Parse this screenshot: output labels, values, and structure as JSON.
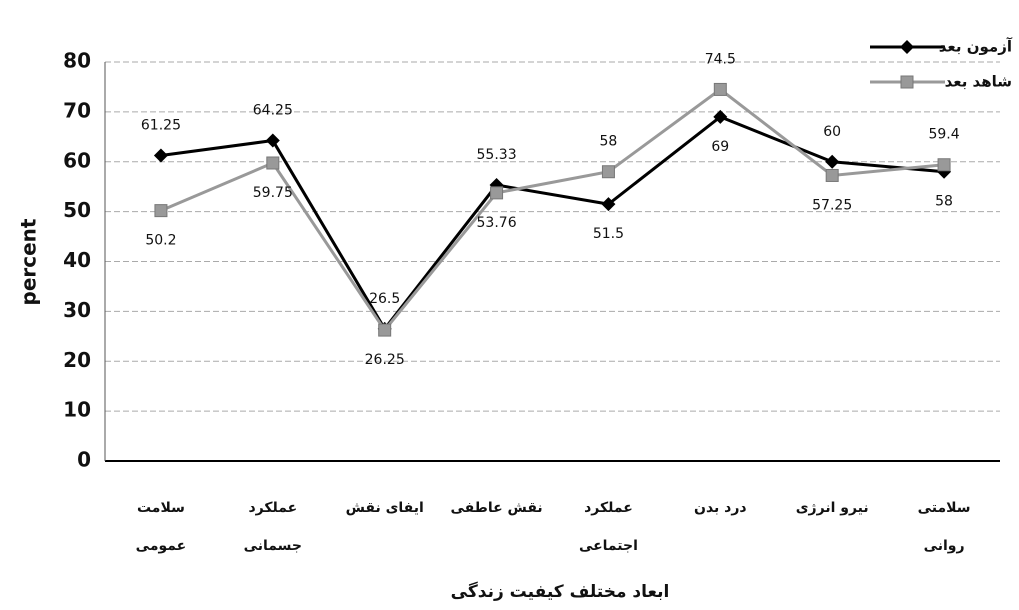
{
  "chart_data": {
    "type": "line",
    "x_label": "ابعاد مختلف کیفیت زندگی",
    "y_label": "percent",
    "categories": [
      "سلامت\nعمومی",
      "عملکرد\nجسمانی",
      "ایفای نقش",
      "نقش عاطفی",
      "عملکرد\nاجتماعی",
      "درد بدن",
      "نیرو انرژی",
      "سلامتی\nروانی"
    ],
    "series": [
      {
        "name": "آزمون بعد",
        "color": "#000000",
        "marker": "diamond",
        "values": [
          61.25,
          64.25,
          26.5,
          55.33,
          51.5,
          69,
          60,
          58
        ]
      },
      {
        "name": "شاهد بعد",
        "color": "#999999",
        "marker": "square",
        "values": [
          50.2,
          59.75,
          26.25,
          53.76,
          58,
          74.5,
          57.25,
          59.4
        ]
      }
    ],
    "ylim": [
      0,
      80
    ],
    "yticks": [
      0,
      10,
      20,
      30,
      40,
      50,
      60,
      70,
      80
    ],
    "grid": true,
    "legend": "upper right"
  }
}
